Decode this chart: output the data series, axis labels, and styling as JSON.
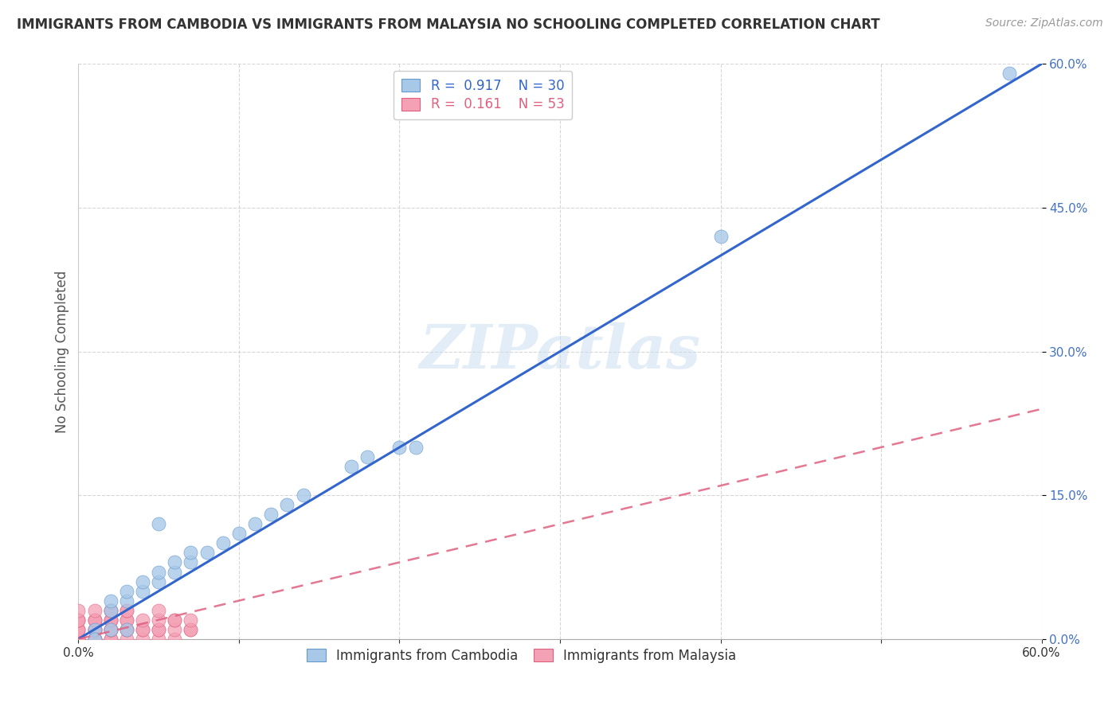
{
  "title": "IMMIGRANTS FROM CAMBODIA VS IMMIGRANTS FROM MALAYSIA NO SCHOOLING COMPLETED CORRELATION CHART",
  "source": "Source: ZipAtlas.com",
  "ylabel": "No Schooling Completed",
  "xlim": [
    0,
    0.6
  ],
  "ylim": [
    0,
    0.6
  ],
  "xtick_positions": [
    0.0,
    0.1,
    0.2,
    0.3,
    0.4,
    0.5,
    0.6
  ],
  "xticklabels": [
    "0.0%",
    "",
    "",
    "",
    "",
    "",
    "60.0%"
  ],
  "ytick_positions": [
    0.0,
    0.15,
    0.3,
    0.45,
    0.6
  ],
  "yticklabels": [
    "0.0%",
    "15.0%",
    "30.0%",
    "45.0%",
    "60.0%"
  ],
  "watermark": "ZIPatlas",
  "blue_color": "#a8c8e8",
  "blue_edge_color": "#6699cc",
  "pink_color": "#f4a0b5",
  "pink_edge_color": "#e06080",
  "blue_line_color": "#3366cc",
  "pink_line_color": "#e06080",
  "R_blue": 0.917,
  "N_blue": 30,
  "R_pink": 0.161,
  "N_pink": 53,
  "blue_x": [
    0.58,
    0.4,
    0.21,
    0.2,
    0.18,
    0.17,
    0.14,
    0.13,
    0.12,
    0.11,
    0.1,
    0.09,
    0.08,
    0.07,
    0.07,
    0.06,
    0.06,
    0.05,
    0.05,
    0.05,
    0.04,
    0.04,
    0.03,
    0.03,
    0.03,
    0.02,
    0.02,
    0.02,
    0.01,
    0.01
  ],
  "blue_y": [
    0.59,
    0.42,
    0.2,
    0.2,
    0.19,
    0.18,
    0.15,
    0.14,
    0.13,
    0.12,
    0.11,
    0.1,
    0.09,
    0.08,
    0.09,
    0.07,
    0.08,
    0.06,
    0.07,
    0.12,
    0.05,
    0.06,
    0.04,
    0.05,
    0.01,
    0.03,
    0.04,
    0.01,
    0.01,
    0.0
  ],
  "pink_x": [
    0.0,
    0.0,
    0.0,
    0.0,
    0.0,
    0.0,
    0.0,
    0.0,
    0.0,
    0.0,
    0.01,
    0.01,
    0.01,
    0.01,
    0.01,
    0.01,
    0.01,
    0.01,
    0.01,
    0.01,
    0.02,
    0.02,
    0.02,
    0.02,
    0.02,
    0.02,
    0.02,
    0.02,
    0.02,
    0.02,
    0.03,
    0.03,
    0.03,
    0.03,
    0.03,
    0.03,
    0.03,
    0.04,
    0.04,
    0.04,
    0.04,
    0.05,
    0.05,
    0.05,
    0.05,
    0.05,
    0.06,
    0.06,
    0.06,
    0.06,
    0.07,
    0.07,
    0.07
  ],
  "pink_y": [
    0.0,
    0.0,
    0.0,
    0.01,
    0.01,
    0.01,
    0.02,
    0.02,
    0.02,
    0.03,
    0.0,
    0.0,
    0.0,
    0.01,
    0.01,
    0.01,
    0.02,
    0.02,
    0.02,
    0.03,
    0.0,
    0.0,
    0.01,
    0.01,
    0.01,
    0.02,
    0.02,
    0.02,
    0.03,
    0.03,
    0.0,
    0.01,
    0.01,
    0.02,
    0.02,
    0.03,
    0.03,
    0.0,
    0.01,
    0.01,
    0.02,
    0.0,
    0.01,
    0.01,
    0.02,
    0.03,
    0.0,
    0.01,
    0.02,
    0.02,
    0.01,
    0.01,
    0.02
  ],
  "blue_line_x": [
    0.0,
    0.6
  ],
  "blue_line_y": [
    0.0,
    0.6
  ],
  "pink_line_x": [
    0.0,
    0.6
  ],
  "pink_line_y": [
    0.0,
    0.24
  ],
  "grid_color": "#cccccc",
  "bg_color": "#ffffff",
  "title_fontsize": 12,
  "source_fontsize": 10,
  "tick_fontsize": 11,
  "ylabel_fontsize": 12
}
